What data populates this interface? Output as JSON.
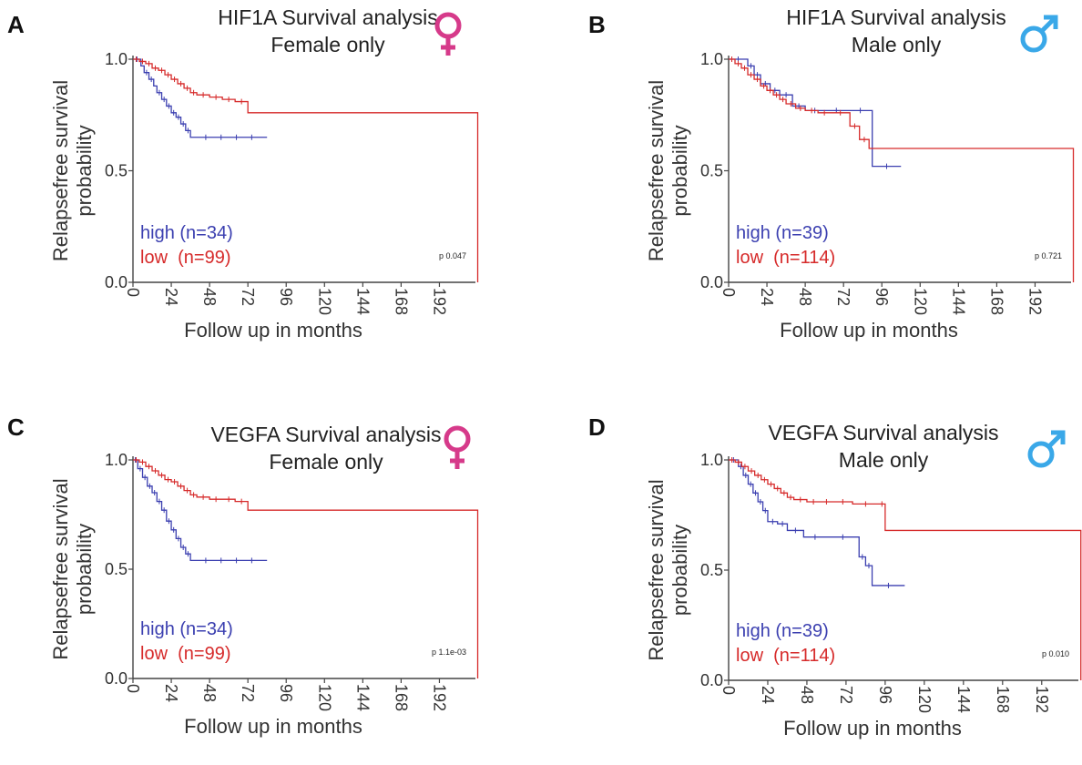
{
  "colors": {
    "high": "#3b3fb0",
    "low": "#d62a2a",
    "female": "#d63a8a",
    "male": "#3aa8e8",
    "axis": "#444444"
  },
  "chart_data": [
    {
      "panel": "A",
      "type": "line",
      "gene": "HIF1A",
      "title": "HIF1A Survival analysis",
      "subtitle": "Female only",
      "sex_icon": "female-symbol-icon",
      "xlabel": "Follow up in months",
      "ylabel": [
        "Relapsefree survival",
        "probability"
      ],
      "xlim": [
        0,
        210
      ],
      "ylim": [
        0,
        1
      ],
      "xticks": [
        "0",
        "24",
        "48",
        "72",
        "96",
        "120",
        "144",
        "168",
        "192"
      ],
      "yticks": [
        "0.0",
        "0.5",
        "1.0"
      ],
      "p_value": "p 0.047",
      "series": [
        {
          "name": "high",
          "label": "high (n=34)",
          "x": [
            0,
            5,
            7,
            10,
            13,
            15,
            18,
            21,
            24,
            27,
            30,
            33,
            36,
            84
          ],
          "y": [
            1,
            0.97,
            0.94,
            0.91,
            0.88,
            0.85,
            0.82,
            0.79,
            0.76,
            0.74,
            0.71,
            0.68,
            0.65,
            0.65
          ]
        },
        {
          "name": "low",
          "label": "low  (n=99)",
          "x": [
            0,
            4,
            8,
            12,
            16,
            20,
            24,
            28,
            32,
            36,
            40,
            48,
            56,
            64,
            72,
            216
          ],
          "y": [
            1,
            0.99,
            0.98,
            0.96,
            0.95,
            0.93,
            0.91,
            0.89,
            0.87,
            0.85,
            0.84,
            0.83,
            0.82,
            0.81,
            0.76,
            0
          ]
        }
      ]
    },
    {
      "panel": "B",
      "type": "line",
      "gene": "HIF1A",
      "title": "HIF1A Survival analysis",
      "subtitle": "Male only",
      "sex_icon": "male-symbol-icon",
      "xlabel": "Follow up in months",
      "ylabel": [
        "Relapsefree survival",
        "probability"
      ],
      "xlim": [
        0,
        210
      ],
      "ylim": [
        0,
        1
      ],
      "xticks": [
        "0",
        "24",
        "48",
        "72",
        "96",
        "120",
        "144",
        "168",
        "192"
      ],
      "yticks": [
        "0.0",
        "0.5",
        "1.0"
      ],
      "p_value": "p 0.721",
      "series": [
        {
          "name": "high",
          "label": "high (n=39)",
          "x": [
            0,
            12,
            16,
            20,
            26,
            32,
            40,
            48,
            60,
            75,
            90,
            108
          ],
          "y": [
            1,
            0.97,
            0.93,
            0.89,
            0.86,
            0.84,
            0.79,
            0.77,
            0.77,
            0.77,
            0.52,
            0.52
          ]
        },
        {
          "name": "low",
          "label": "low  (n=114)",
          "x": [
            0,
            4,
            8,
            12,
            16,
            20,
            24,
            28,
            32,
            36,
            42,
            48,
            56,
            64,
            76,
            82,
            88,
            216
          ],
          "y": [
            1,
            0.98,
            0.96,
            0.93,
            0.91,
            0.88,
            0.86,
            0.84,
            0.82,
            0.8,
            0.78,
            0.77,
            0.76,
            0.76,
            0.7,
            0.64,
            0.6,
            0
          ]
        }
      ]
    },
    {
      "panel": "C",
      "type": "line",
      "gene": "VEGFA",
      "title": "VEGFA Survival analysis",
      "subtitle": "Female only",
      "sex_icon": "female-symbol-icon",
      "xlabel": "Follow up in months",
      "ylabel": [
        "Relapsefree survival",
        "probability"
      ],
      "xlim": [
        0,
        210
      ],
      "ylim": [
        0,
        1
      ],
      "xticks": [
        "0",
        "24",
        "48",
        "72",
        "96",
        "120",
        "144",
        "168",
        "192"
      ],
      "yticks": [
        "0.0",
        "0.5",
        "1.0"
      ],
      "p_value": "p 1.1e-03",
      "series": [
        {
          "name": "high",
          "label": "high (n=34)",
          "x": [
            0,
            3,
            6,
            9,
            12,
            15,
            18,
            21,
            24,
            27,
            30,
            33,
            36,
            84
          ],
          "y": [
            1,
            0.96,
            0.92,
            0.88,
            0.85,
            0.81,
            0.77,
            0.72,
            0.68,
            0.64,
            0.6,
            0.57,
            0.54,
            0.54
          ]
        },
        {
          "name": "low",
          "label": "low  (n=99)",
          "x": [
            0,
            4,
            8,
            12,
            16,
            20,
            24,
            28,
            32,
            36,
            40,
            48,
            56,
            64,
            72,
            216
          ],
          "y": [
            1,
            0.99,
            0.97,
            0.95,
            0.93,
            0.91,
            0.9,
            0.88,
            0.86,
            0.84,
            0.83,
            0.82,
            0.82,
            0.81,
            0.77,
            0
          ]
        }
      ]
    },
    {
      "panel": "D",
      "type": "line",
      "gene": "VEGFA",
      "title": "VEGFA Survival analysis",
      "subtitle": "Male only",
      "sex_icon": "male-symbol-icon",
      "xlabel": "Follow up in months",
      "ylabel": [
        "Relapsefree survival",
        "probability"
      ],
      "xlim": [
        0,
        210
      ],
      "ylim": [
        0,
        1
      ],
      "xticks": [
        "0",
        "24",
        "48",
        "72",
        "96",
        "120",
        "144",
        "168",
        "192"
      ],
      "yticks": [
        "0.0",
        "0.5",
        "1.0"
      ],
      "p_value": "p 0.010",
      "series": [
        {
          "name": "high",
          "label": "high (n=39)",
          "x": [
            0,
            6,
            9,
            12,
            15,
            18,
            21,
            24,
            30,
            36,
            46,
            60,
            80,
            84,
            88,
            108
          ],
          "y": [
            1,
            0.97,
            0.93,
            0.89,
            0.85,
            0.81,
            0.77,
            0.72,
            0.71,
            0.68,
            0.65,
            0.65,
            0.56,
            0.52,
            0.43,
            0.43
          ]
        },
        {
          "name": "low",
          "label": "low  (n=114)",
          "x": [
            0,
            4,
            8,
            12,
            16,
            20,
            24,
            28,
            32,
            36,
            40,
            48,
            56,
            64,
            76,
            92,
            96,
            216
          ],
          "y": [
            1,
            0.99,
            0.97,
            0.95,
            0.93,
            0.91,
            0.89,
            0.87,
            0.85,
            0.83,
            0.82,
            0.81,
            0.81,
            0.81,
            0.8,
            0.8,
            0.68,
            0
          ]
        }
      ]
    }
  ]
}
